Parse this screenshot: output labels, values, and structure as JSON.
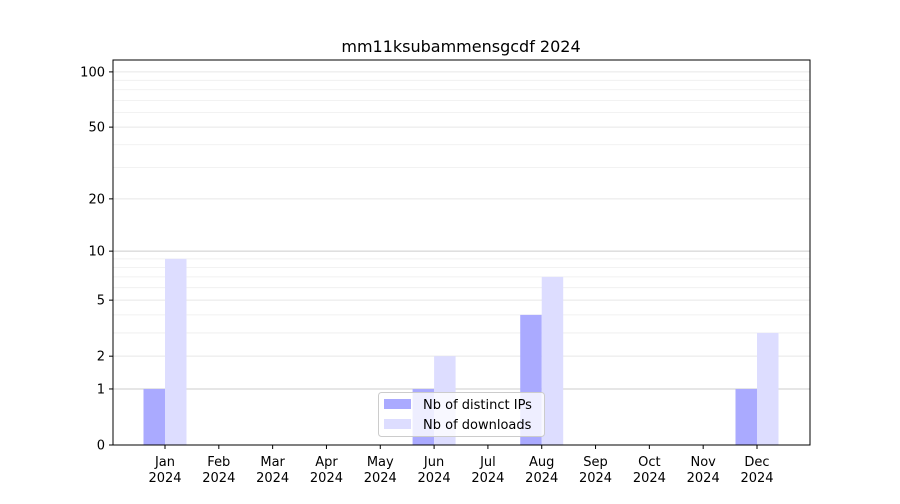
{
  "chart_data": {
    "type": "bar",
    "title": "mm11ksubammensgcdf 2024",
    "xlabel": "",
    "ylabel": "",
    "yscale": "symlog",
    "ylim": [
      0,
      116
    ],
    "yticks": [
      0,
      1,
      2,
      5,
      10,
      20,
      50,
      100
    ],
    "grid": true,
    "legend_position": "bottom-center",
    "categories": [
      "Jan\n2024",
      "Feb\n2024",
      "Mar\n2024",
      "Apr\n2024",
      "May\n2024",
      "Jun\n2024",
      "Jul\n2024",
      "Aug\n2024",
      "Sep\n2024",
      "Oct\n2024",
      "Nov\n2024",
      "Dec\n2024"
    ],
    "series": [
      {
        "name": "Nb of distinct IPs",
        "color": "#aaaaff",
        "values": [
          1,
          0,
          0,
          0,
          0,
          1,
          0,
          4,
          0,
          0,
          0,
          1
        ]
      },
      {
        "name": "Nb of downloads",
        "color": "#ddddff",
        "values": [
          9,
          0,
          0,
          0,
          0,
          2,
          0,
          7,
          0,
          0,
          0,
          3
        ]
      }
    ]
  }
}
